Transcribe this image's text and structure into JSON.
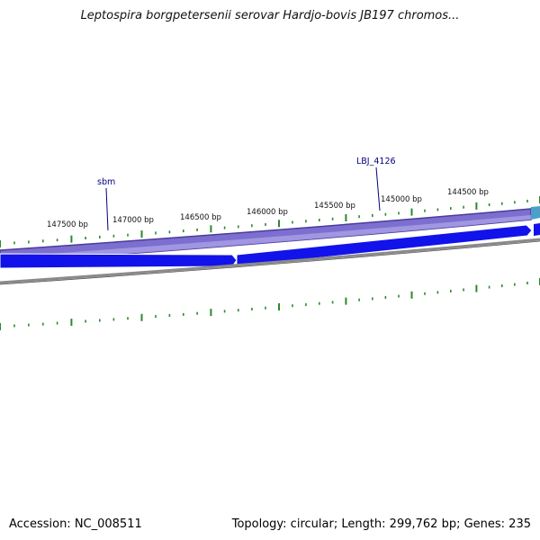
{
  "title": "Leptospira borgpetersenii serovar Hardjo-bovis JB197 chromos...",
  "footer": {
    "accession": "Accession: NC_008511",
    "summary": "Topology: circular; Length: 299,762 bp; Genes: 235"
  },
  "colors": {
    "outer_ring": "#8070d0",
    "outer_ring_dark": "#4a3c9a",
    "gene_arrow": "#1010e8",
    "backbone": "#888888",
    "tick_marks": "#2a8a2a",
    "label_text": "#000080"
  },
  "position_labels": [
    "147500 bp",
    "147000 bp",
    "146500 bp",
    "146000 bp",
    "145500 bp",
    "145000 bp",
    "144500 bp"
  ],
  "gene_labels": [
    "sbm",
    "LBJ_4126"
  ]
}
